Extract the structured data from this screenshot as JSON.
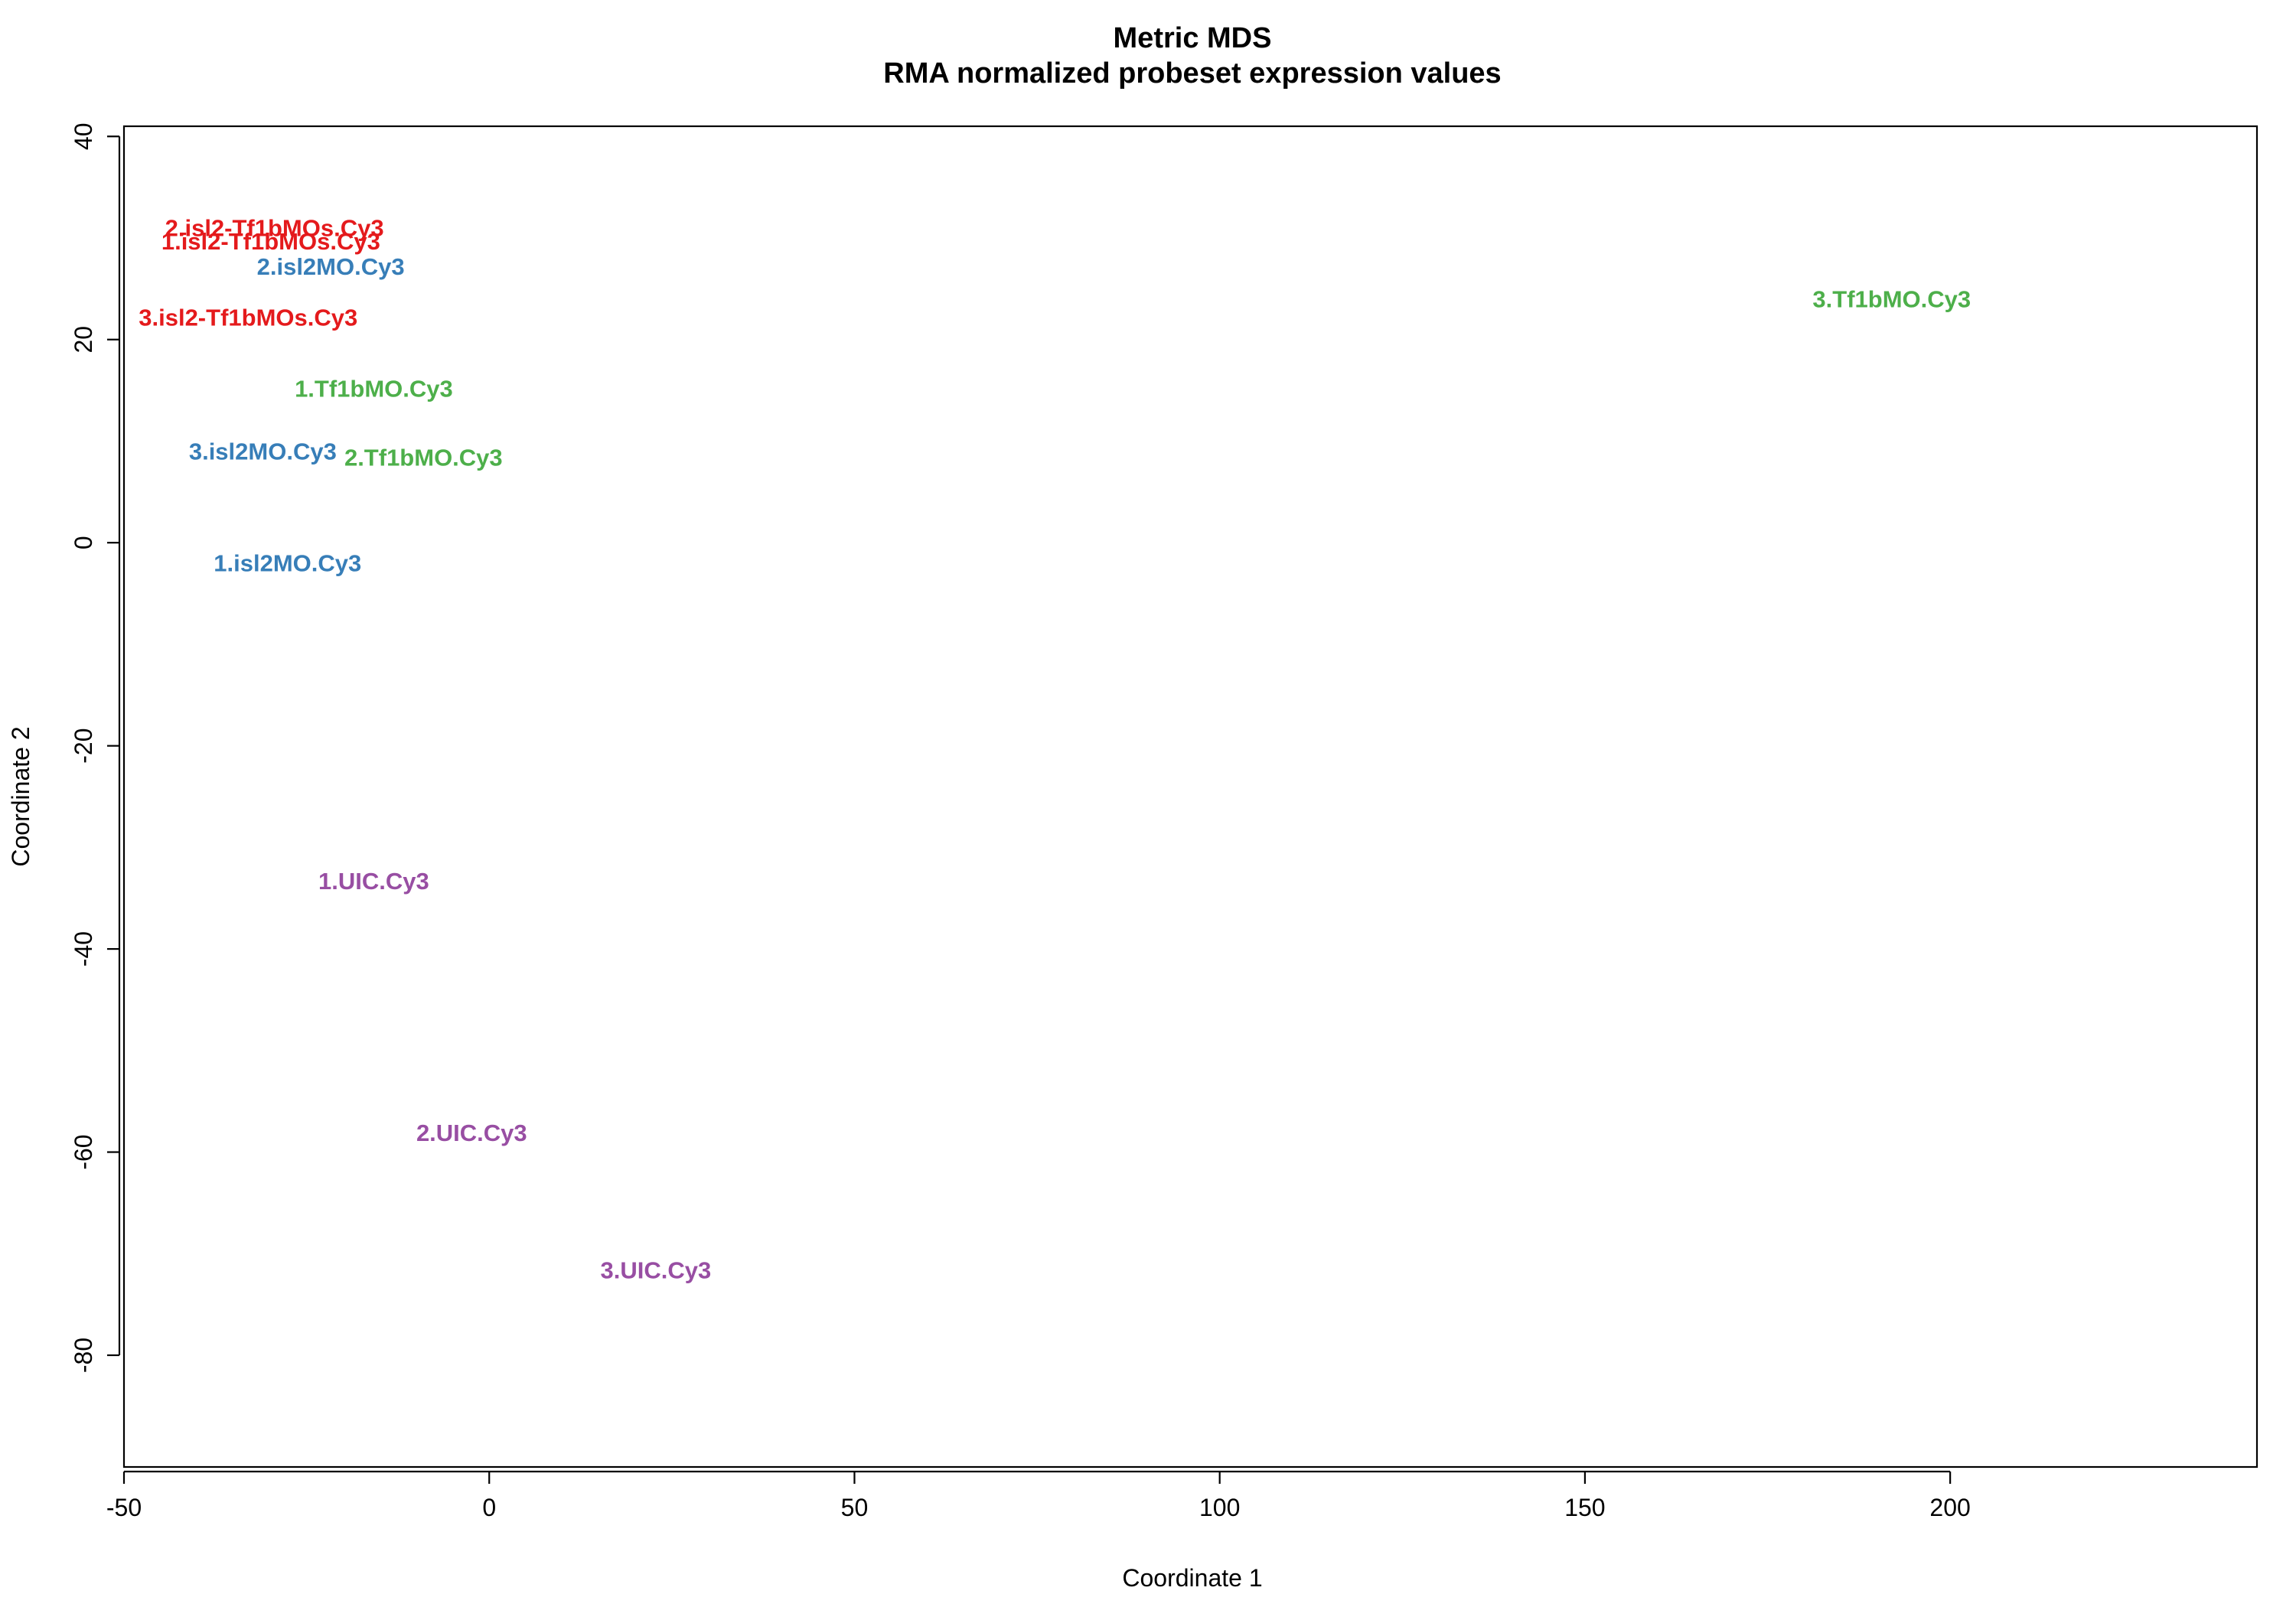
{
  "chart_data": {
    "type": "scatter",
    "title": "Metric MDS",
    "subtitle": "RMA normalized probeset expression values",
    "xlabel": "Coordinate 1",
    "ylabel": "Coordinate 2",
    "xlim": [
      -50,
      242
    ],
    "ylim": [
      -91,
      41
    ],
    "xticks": [
      -50,
      0,
      50,
      100,
      150,
      200
    ],
    "yticks": [
      -80,
      -60,
      -40,
      -20,
      0,
      20,
      40
    ],
    "grid": false,
    "legend": "none",
    "markers": "text labels",
    "groups": [
      {
        "color": "#e41a1c",
        "points": [
          {
            "label": "2.isl2-Tf1bMOs.Cy3",
            "x": -29.4,
            "y": 30.8
          },
          {
            "label": "1.isl2-Tf1bMOs.Cy3",
            "x": -29.9,
            "y": 29.5
          },
          {
            "label": "3.isl2-Tf1bMOs.Cy3",
            "x": -33.0,
            "y": 22.0
          }
        ]
      },
      {
        "color": "#377eb8",
        "points": [
          {
            "label": "2.isl2MO.Cy3",
            "x": -21.7,
            "y": 27.0
          },
          {
            "label": "3.isl2MO.Cy3",
            "x": -31.0,
            "y": 8.8
          },
          {
            "label": "1.isl2MO.Cy3",
            "x": -27.6,
            "y": -2.2
          }
        ]
      },
      {
        "color": "#4daf4a",
        "points": [
          {
            "label": "3.Tf1bMO.Cy3",
            "x": 192.0,
            "y": 23.8
          },
          {
            "label": "1.Tf1bMO.Cy3",
            "x": -15.8,
            "y": 15.0
          },
          {
            "label": "2.Tf1bMO.Cy3",
            "x": -9.0,
            "y": 8.2
          }
        ]
      },
      {
        "color": "#984ea3",
        "points": [
          {
            "label": "1.UIC.Cy3",
            "x": -15.8,
            "y": -33.5
          },
          {
            "label": "2.UIC.Cy3",
            "x": -2.4,
            "y": -58.3
          },
          {
            "label": "3.UIC.Cy3",
            "x": 22.8,
            "y": -71.8
          }
        ]
      }
    ]
  }
}
